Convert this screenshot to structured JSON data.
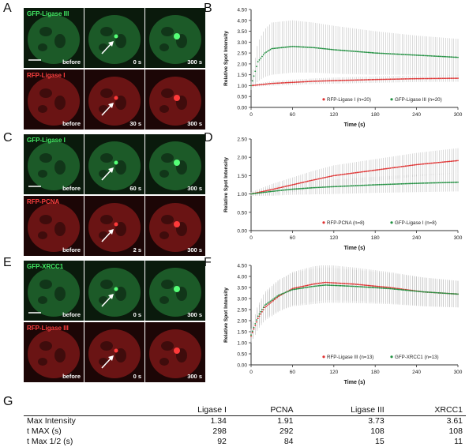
{
  "panels": {
    "A": {
      "label": "A",
      "rows": [
        {
          "name": "GFP-Ligase III",
          "color": "green",
          "tiles": [
            {
              "cap": "before",
              "dot": false
            },
            {
              "cap": "0 s",
              "dot": true,
              "arrow": true
            },
            {
              "cap": "300 s",
              "dot": true
            }
          ]
        },
        {
          "name": "RFP-Ligase I",
          "color": "red",
          "tiles": [
            {
              "cap": "before",
              "dot": false
            },
            {
              "cap": "30 s",
              "dot": true,
              "arrow": true
            },
            {
              "cap": "300 s",
              "dot": true
            }
          ]
        }
      ]
    },
    "C": {
      "label": "C",
      "rows": [
        {
          "name": "GFP-Ligase I",
          "color": "green",
          "tiles": [
            {
              "cap": "before",
              "dot": false
            },
            {
              "cap": "60 s",
              "dot": true,
              "arrow": true
            },
            {
              "cap": "300 s",
              "dot": true
            }
          ]
        },
        {
          "name": "RFP-PCNA",
          "color": "red",
          "tiles": [
            {
              "cap": "before",
              "dot": false
            },
            {
              "cap": "2 s",
              "dot": true,
              "arrow": true
            },
            {
              "cap": "300 s",
              "dot": true
            }
          ]
        }
      ]
    },
    "E": {
      "label": "E",
      "rows": [
        {
          "name": "GFP-XRCC1",
          "color": "green",
          "tiles": [
            {
              "cap": "before",
              "dot": false
            },
            {
              "cap": "0 s",
              "dot": true,
              "arrow": true
            },
            {
              "cap": "300 s",
              "dot": true
            }
          ]
        },
        {
          "name": "RFP-Ligase III",
          "color": "red",
          "tiles": [
            {
              "cap": "before",
              "dot": false
            },
            {
              "cap": "0 s",
              "dot": true,
              "arrow": true
            },
            {
              "cap": "300 s",
              "dot": true
            }
          ]
        }
      ]
    }
  },
  "chart_data": [
    {
      "panel": "B",
      "type": "line",
      "xlabel": "Time (s)",
      "ylabel": "Relative Spot Intensity",
      "xlim": [
        0,
        300
      ],
      "ylim": [
        0,
        4.5
      ],
      "xticks": [
        0,
        60,
        120,
        180,
        240,
        300
      ],
      "yticks": [
        0.0,
        0.5,
        1.0,
        1.5,
        2.0,
        2.5,
        3.0,
        3.5,
        4.0,
        4.5
      ],
      "series": [
        {
          "name": "RFP-Ligase I (n=20)",
          "color": "#e03030",
          "x": [
            0,
            15,
            30,
            60,
            90,
            120,
            180,
            240,
            300
          ],
          "y": [
            1.0,
            1.05,
            1.1,
            1.15,
            1.2,
            1.23,
            1.28,
            1.32,
            1.34
          ],
          "err": [
            0.05,
            0.08,
            0.1,
            0.12,
            0.13,
            0.14,
            0.15,
            0.15,
            0.16
          ]
        },
        {
          "name": "GFP-Ligase III (n=20)",
          "color": "#209040",
          "x": [
            0,
            10,
            20,
            30,
            45,
            60,
            90,
            120,
            180,
            240,
            300
          ],
          "y": [
            1.0,
            2.1,
            2.5,
            2.7,
            2.75,
            2.8,
            2.75,
            2.65,
            2.5,
            2.4,
            2.3
          ],
          "err": [
            0.2,
            0.9,
            1.1,
            1.2,
            1.2,
            1.2,
            1.15,
            1.1,
            1.0,
            0.9,
            0.85
          ]
        }
      ]
    },
    {
      "panel": "D",
      "type": "line",
      "xlabel": "Time (s)",
      "ylabel": "Relative Spot Intensity",
      "xlim": [
        0,
        300
      ],
      "ylim": [
        0,
        2.5
      ],
      "xticks": [
        0,
        60,
        120,
        180,
        240,
        300
      ],
      "yticks": [
        0.0,
        0.5,
        1.0,
        1.5,
        2.0,
        2.5
      ],
      "series": [
        {
          "name": "RFP-PCNA (n=8)",
          "color": "#e03030",
          "x": [
            0,
            30,
            60,
            90,
            120,
            180,
            240,
            300
          ],
          "y": [
            1.0,
            1.12,
            1.25,
            1.38,
            1.5,
            1.65,
            1.8,
            1.91
          ],
          "err": [
            0.05,
            0.15,
            0.2,
            0.25,
            0.28,
            0.3,
            0.32,
            0.34
          ]
        },
        {
          "name": "GFP-Ligase I (n=8)",
          "color": "#209040",
          "x": [
            0,
            30,
            60,
            90,
            120,
            180,
            240,
            300
          ],
          "y": [
            1.0,
            1.07,
            1.13,
            1.17,
            1.2,
            1.25,
            1.29,
            1.32
          ],
          "err": [
            0.05,
            0.12,
            0.15,
            0.18,
            0.2,
            0.22,
            0.24,
            0.25
          ]
        }
      ]
    },
    {
      "panel": "F",
      "type": "line",
      "xlabel": "Time (s)",
      "ylabel": "Relative Spot Intensity",
      "xlim": [
        0,
        300
      ],
      "ylim": [
        0,
        4.5
      ],
      "xticks": [
        0,
        60,
        120,
        180,
        240,
        300
      ],
      "yticks": [
        0.0,
        0.5,
        1.0,
        1.5,
        2.0,
        2.5,
        3.0,
        3.5,
        4.0,
        4.5
      ],
      "series": [
        {
          "name": "RFP-Ligase III (n=13)",
          "color": "#e03030",
          "x": [
            0,
            10,
            20,
            40,
            60,
            90,
            108,
            150,
            200,
            250,
            300
          ],
          "y": [
            1.3,
            2.1,
            2.6,
            3.1,
            3.45,
            3.65,
            3.73,
            3.65,
            3.5,
            3.3,
            3.2
          ],
          "err": [
            0.3,
            0.5,
            0.6,
            0.7,
            0.75,
            0.8,
            0.8,
            0.75,
            0.7,
            0.65,
            0.6
          ]
        },
        {
          "name": "GFP-XRCC1 (n=13)",
          "color": "#209040",
          "x": [
            0,
            10,
            20,
            40,
            60,
            90,
            108,
            150,
            200,
            250,
            300
          ],
          "y": [
            1.35,
            2.2,
            2.7,
            3.15,
            3.4,
            3.55,
            3.61,
            3.55,
            3.45,
            3.3,
            3.2
          ],
          "err": [
            0.3,
            0.5,
            0.6,
            0.7,
            0.75,
            0.8,
            0.8,
            0.75,
            0.7,
            0.65,
            0.6
          ]
        }
      ]
    }
  ],
  "table": {
    "label": "G",
    "headers": [
      "",
      "Ligase I",
      "PCNA",
      "Ligase III",
      "XRCC1"
    ],
    "rows": [
      [
        "Max Intensity",
        "1.34",
        "1.91",
        "3.73",
        "3.61"
      ],
      [
        "t MAX (s)",
        "298",
        "292",
        "108",
        "108"
      ],
      [
        "t Max 1/2 (s)",
        "92",
        "84",
        "15",
        "11"
      ]
    ]
  },
  "colors": {
    "green": "#1d9a3a",
    "red": "#d42020",
    "error": "#b5b5b5"
  }
}
